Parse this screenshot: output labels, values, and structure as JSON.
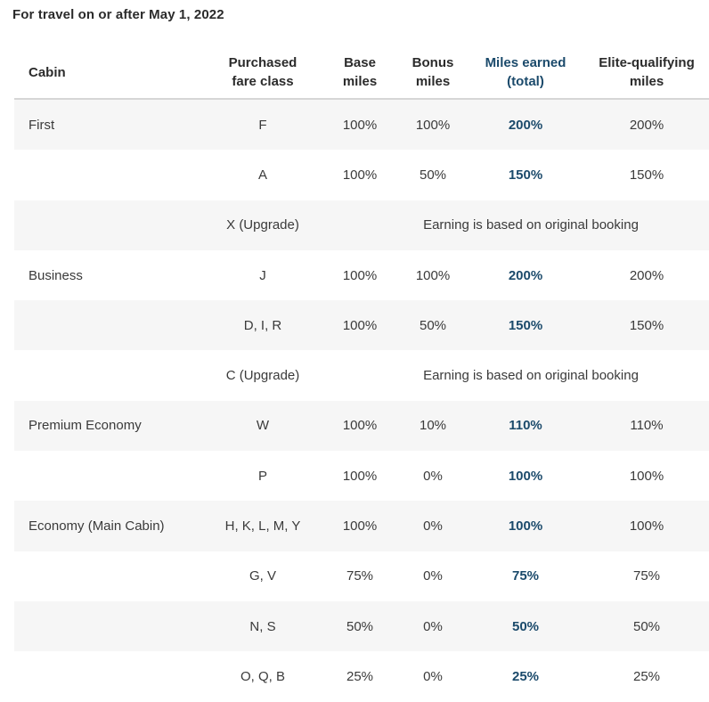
{
  "title": "For travel on or after May 1, 2022",
  "headers": {
    "cabin": "Cabin",
    "fare_class_1": "Purchased",
    "fare_class_2": "fare class",
    "base_1": "Base",
    "base_2": "miles",
    "bonus_1": "Bonus",
    "bonus_2": "miles",
    "earned_1": "Miles earned",
    "earned_2": "(total)",
    "elite_1": "Elite-qualifying",
    "elite_2": "miles"
  },
  "rows": [
    {
      "cabin": "First",
      "fare": "F",
      "base": "100%",
      "bonus": "100%",
      "earned": "200%",
      "elite": "200%"
    },
    {
      "cabin": "",
      "fare": "A",
      "base": "100%",
      "bonus": "50%",
      "earned": "150%",
      "elite": "150%"
    },
    {
      "cabin": "",
      "fare": "X (Upgrade)",
      "note": "Earning is based on original booking"
    },
    {
      "cabin": "Business",
      "fare": "J",
      "base": "100%",
      "bonus": "100%",
      "earned": "200%",
      "elite": "200%"
    },
    {
      "cabin": "",
      "fare": "D, I, R",
      "base": "100%",
      "bonus": "50%",
      "earned": "150%",
      "elite": "150%"
    },
    {
      "cabin": "",
      "fare": "C (Upgrade)",
      "note": "Earning is based on original booking"
    },
    {
      "cabin": "Premium Economy",
      "fare": "W",
      "base": "100%",
      "bonus": "10%",
      "earned": "110%",
      "elite": "110%"
    },
    {
      "cabin": "",
      "fare": "P",
      "base": "100%",
      "bonus": "0%",
      "earned": "100%",
      "elite": "100%"
    },
    {
      "cabin": "Economy (Main Cabin)",
      "fare": "H, K, L, M, Y",
      "base": "100%",
      "bonus": "0%",
      "earned": "100%",
      "elite": "100%"
    },
    {
      "cabin": "",
      "fare": "G, V",
      "base": "75%",
      "bonus": "0%",
      "earned": "75%",
      "elite": "75%"
    },
    {
      "cabin": "",
      "fare": "N, S",
      "base": "50%",
      "bonus": "0%",
      "earned": "50%",
      "elite": "50%"
    },
    {
      "cabin": "",
      "fare": "O, Q, B",
      "base": "25%",
      "bonus": "0%",
      "earned": "25%",
      "elite": "25%"
    }
  ],
  "colors": {
    "accent": "#1b4a6b",
    "row_shade": "#f6f6f6",
    "divider": "#d6d6d6"
  }
}
